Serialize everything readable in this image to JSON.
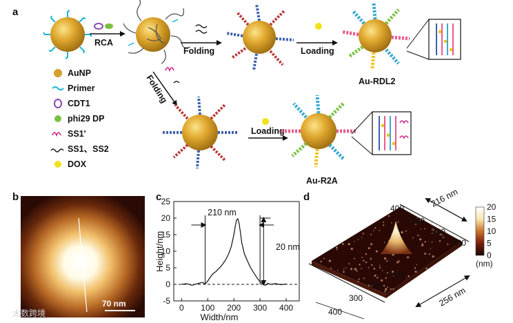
{
  "panels": {
    "a": "a",
    "b": "b",
    "c": "c",
    "d": "d"
  },
  "panel_a": {
    "steps": {
      "rca": "RCA",
      "folding": "Folding",
      "loading": "Loading",
      "folding_lower": "Folding",
      "loading_lower": "Loading"
    },
    "products": {
      "upper": "Au-RDL2",
      "lower": "Au-R2A"
    },
    "legend": [
      {
        "label": "AuNP",
        "icon": "gold-nanoparticle-icon",
        "color": "#d4a12a"
      },
      {
        "label": "Primer",
        "icon": "primer-strand-icon",
        "color": "#19b3d6"
      },
      {
        "label": "CDT1",
        "icon": "circular-template-icon",
        "color": "#8a48b0"
      },
      {
        "label": "phi29 DP",
        "icon": "polymerase-icon",
        "color": "#7bc043"
      },
      {
        "label": "SS1'",
        "icon": "ss1-prime-strand-icon",
        "color": "#d0208a"
      },
      {
        "label": "SS1、SS2",
        "icon": "ss1-ss2-strand-icon",
        "color": "#222222"
      },
      {
        "label": "DOX",
        "icon": "dox-molecule-icon",
        "color": "#f2e21a"
      }
    ]
  },
  "panel_b": {
    "scale_bar": "70 nm"
  },
  "chart_data": [
    {
      "type": "line",
      "panel": "c",
      "xlabel": "Width/nm",
      "ylabel": "Height/nm",
      "xlim": [
        -30,
        450
      ],
      "ylim": [
        -5,
        25
      ],
      "xticks": [
        0,
        100,
        200,
        300,
        400
      ],
      "yticks": [
        -5,
        0,
        5,
        10,
        15,
        20,
        25
      ],
      "annotations": {
        "width": "210 nm",
        "height": "20 nm"
      },
      "baseline": 0,
      "series": [
        {
          "x": [
            0,
            20,
            40,
            60,
            80,
            90,
            100,
            110,
            120,
            130,
            140,
            150,
            160,
            170,
            180,
            190,
            200,
            205,
            210,
            215,
            220,
            225,
            230,
            240,
            250,
            260,
            270,
            280,
            290,
            300,
            310,
            320,
            330,
            340,
            360,
            380,
            400
          ],
          "y": [
            0,
            0.2,
            -0.3,
            0.2,
            0.6,
            0.1,
            1.0,
            2.2,
            3.2,
            3.8,
            4.6,
            5.4,
            6.4,
            7.6,
            9.2,
            11.4,
            15.0,
            17.4,
            19.4,
            19.8,
            18.4,
            15.6,
            12.6,
            9.2,
            7.4,
            5.6,
            4.2,
            3.0,
            1.8,
            0.8,
            0.2,
            -0.3,
            0.3,
            0.0,
            0.2,
            -0.1,
            0.1
          ]
        }
      ]
    },
    {
      "type": "heatmap",
      "panel": "d",
      "axes": {
        "left_ticks": [
          "400",
          "300",
          "200",
          "100"
        ],
        "right_ticks": [
          "100",
          "200",
          "300",
          "400"
        ]
      },
      "dimensions": {
        "top": "216 nm",
        "bottom": "256 nm"
      },
      "colorbar": {
        "ticks": [
          "20",
          "15",
          "10",
          "5",
          "0"
        ],
        "unit": "(nm)",
        "colors": [
          "#ffffff",
          "#f7e7b0",
          "#c9732c",
          "#7a1f10",
          "#1a0705"
        ]
      }
    }
  ],
  "watermark": "大数跨境"
}
